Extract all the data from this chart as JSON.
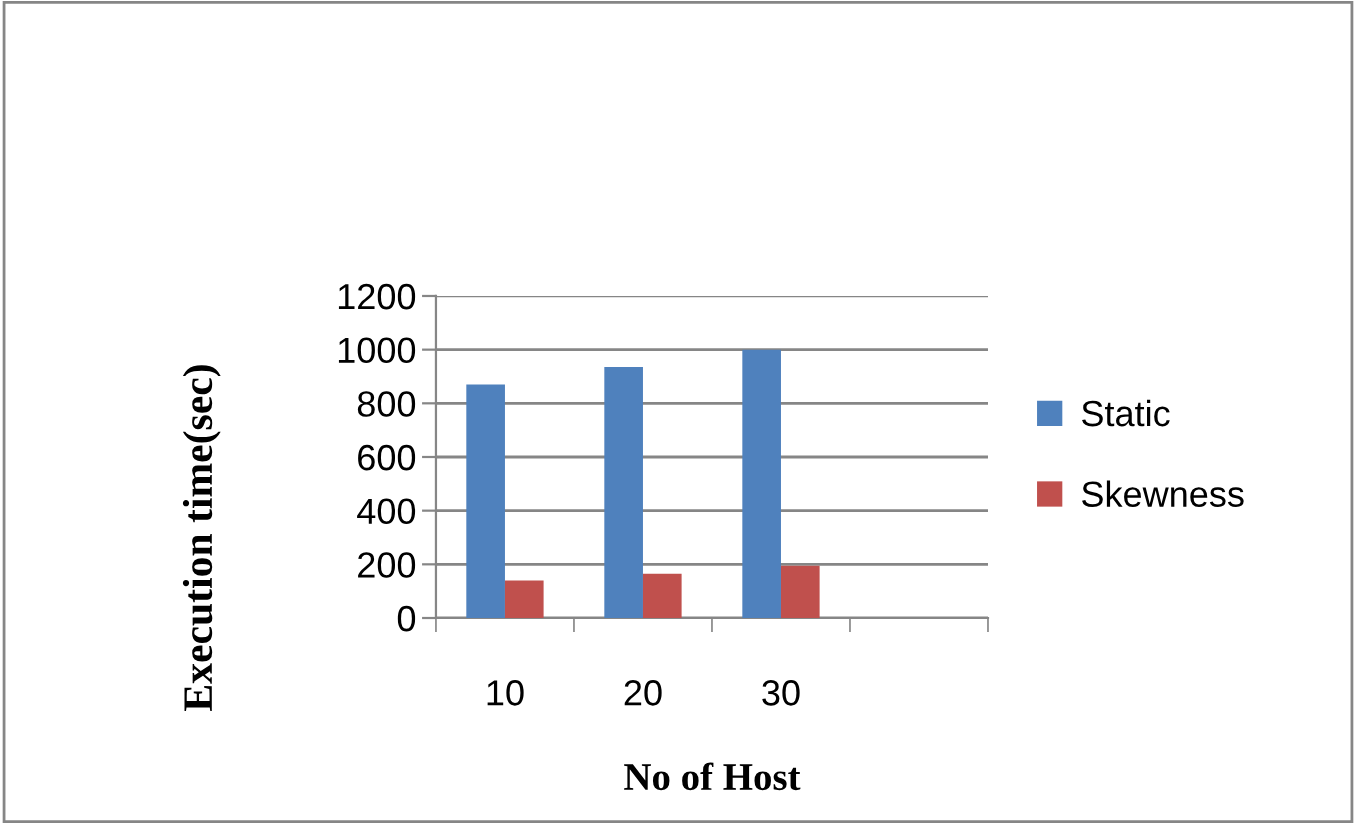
{
  "chart_data": {
    "type": "bar",
    "xlabel": "No of Host",
    "ylabel": "Execution time(sec)",
    "categories": [
      "10",
      "20",
      "30",
      null
    ],
    "series": [
      {
        "name": "Static",
        "color": "#4f81bd",
        "values": [
          870,
          935,
          1000,
          null
        ]
      },
      {
        "name": "Skewness",
        "color": "#c0504d",
        "values": [
          140,
          165,
          195,
          null
        ]
      }
    ],
    "ylim": [
      0,
      1200
    ],
    "yticks": [
      0,
      200,
      400,
      600,
      800,
      1000,
      1200
    ],
    "grid": "y",
    "legend": "right"
  }
}
